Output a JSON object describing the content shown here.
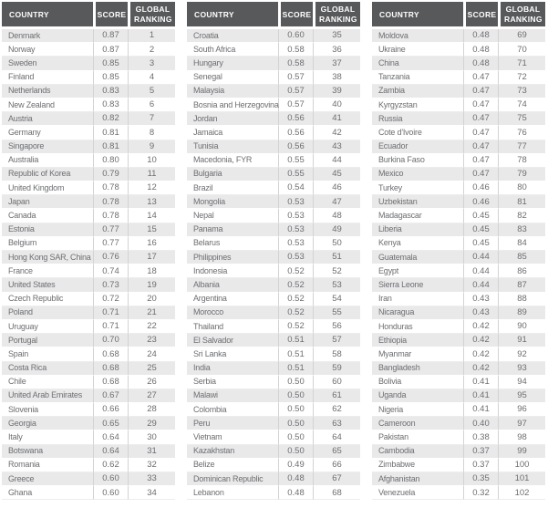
{
  "colors": {
    "header_bg": "#58595B",
    "header_text": "#FFFFFF",
    "row_shaded": "#E9E9EA",
    "row_white": "#FFFFFF",
    "column_divider": "#D2D3D4",
    "body_text": "#6D6E71"
  },
  "chart_data": {
    "type": "table",
    "columns": [
      "COUNTRY",
      "SCORE",
      "GLOBAL RANKING"
    ],
    "panels": [
      {
        "rows": [
          [
            "Denmark",
            "0.87",
            "1"
          ],
          [
            "Norway",
            "0.87",
            "2"
          ],
          [
            "Sweden",
            "0.85",
            "3"
          ],
          [
            "Finland",
            "0.85",
            "4"
          ],
          [
            "Netherlands",
            "0.83",
            "5"
          ],
          [
            "New Zealand",
            "0.83",
            "6"
          ],
          [
            "Austria",
            "0.82",
            "7"
          ],
          [
            "Germany",
            "0.81",
            "8"
          ],
          [
            "Singapore",
            "0.81",
            "9"
          ],
          [
            "Australia",
            "0.80",
            "10"
          ],
          [
            "Republic of Korea",
            "0.79",
            "11"
          ],
          [
            "United Kingdom",
            "0.78",
            "12"
          ],
          [
            "Japan",
            "0.78",
            "13"
          ],
          [
            "Canada",
            "0.78",
            "14"
          ],
          [
            "Estonia",
            "0.77",
            "15"
          ],
          [
            "Belgium",
            "0.77",
            "16"
          ],
          [
            "Hong Kong SAR, China",
            "0.76",
            "17"
          ],
          [
            "France",
            "0.74",
            "18"
          ],
          [
            "United States",
            "0.73",
            "19"
          ],
          [
            "Czech Republic",
            "0.72",
            "20"
          ],
          [
            "Poland",
            "0.71",
            "21"
          ],
          [
            "Uruguay",
            "0.71",
            "22"
          ],
          [
            "Portugal",
            "0.70",
            "23"
          ],
          [
            "Spain",
            "0.68",
            "24"
          ],
          [
            "Costa Rica",
            "0.68",
            "25"
          ],
          [
            "Chile",
            "0.68",
            "26"
          ],
          [
            "United Arab Emirates",
            "0.67",
            "27"
          ],
          [
            "Slovenia",
            "0.66",
            "28"
          ],
          [
            "Georgia",
            "0.65",
            "29"
          ],
          [
            "Italy",
            "0.64",
            "30"
          ],
          [
            "Botswana",
            "0.64",
            "31"
          ],
          [
            "Romania",
            "0.62",
            "32"
          ],
          [
            "Greece",
            "0.60",
            "33"
          ],
          [
            "Ghana",
            "0.60",
            "34"
          ]
        ]
      },
      {
        "rows": [
          [
            "Croatia",
            "0.60",
            "35"
          ],
          [
            "South Africa",
            "0.58",
            "36"
          ],
          [
            "Hungary",
            "0.58",
            "37"
          ],
          [
            "Senegal",
            "0.57",
            "38"
          ],
          [
            "Malaysia",
            "0.57",
            "39"
          ],
          [
            "Bosnia and Herzegovina",
            "0.57",
            "40"
          ],
          [
            "Jordan",
            "0.56",
            "41"
          ],
          [
            "Jamaica",
            "0.56",
            "42"
          ],
          [
            "Tunisia",
            "0.56",
            "43"
          ],
          [
            "Macedonia, FYR",
            "0.55",
            "44"
          ],
          [
            "Bulgaria",
            "0.55",
            "45"
          ],
          [
            "Brazil",
            "0.54",
            "46"
          ],
          [
            "Mongolia",
            "0.53",
            "47"
          ],
          [
            "Nepal",
            "0.53",
            "48"
          ],
          [
            "Panama",
            "0.53",
            "49"
          ],
          [
            "Belarus",
            "0.53",
            "50"
          ],
          [
            "Philippines",
            "0.53",
            "51"
          ],
          [
            "Indonesia",
            "0.52",
            "52"
          ],
          [
            "Albania",
            "0.52",
            "53"
          ],
          [
            "Argentina",
            "0.52",
            "54"
          ],
          [
            "Morocco",
            "0.52",
            "55"
          ],
          [
            "Thailand",
            "0.52",
            "56"
          ],
          [
            "El Salvador",
            "0.51",
            "57"
          ],
          [
            "Sri Lanka",
            "0.51",
            "58"
          ],
          [
            "India",
            "0.51",
            "59"
          ],
          [
            "Serbia",
            "0.50",
            "60"
          ],
          [
            "Malawi",
            "0.50",
            "61"
          ],
          [
            "Colombia",
            "0.50",
            "62"
          ],
          [
            "Peru",
            "0.50",
            "63"
          ],
          [
            "Vietnam",
            "0.50",
            "64"
          ],
          [
            "Kazakhstan",
            "0.50",
            "65"
          ],
          [
            "Belize",
            "0.49",
            "66"
          ],
          [
            "Dominican Republic",
            "0.48",
            "67"
          ],
          [
            "Lebanon",
            "0.48",
            "68"
          ]
        ]
      },
      {
        "rows": [
          [
            "Moldova",
            "0.48",
            "69"
          ],
          [
            "Ukraine",
            "0.48",
            "70"
          ],
          [
            "China",
            "0.48",
            "71"
          ],
          [
            "Tanzania",
            "0.47",
            "72"
          ],
          [
            "Zambia",
            "0.47",
            "73"
          ],
          [
            "Kyrgyzstan",
            "0.47",
            "74"
          ],
          [
            "Russia",
            "0.47",
            "75"
          ],
          [
            "Cote d'Ivoire",
            "0.47",
            "76"
          ],
          [
            "Ecuador",
            "0.47",
            "77"
          ],
          [
            "Burkina Faso",
            "0.47",
            "78"
          ],
          [
            "Mexico",
            "0.47",
            "79"
          ],
          [
            "Turkey",
            "0.46",
            "80"
          ],
          [
            "Uzbekistan",
            "0.46",
            "81"
          ],
          [
            "Madagascar",
            "0.45",
            "82"
          ],
          [
            "Liberia",
            "0.45",
            "83"
          ],
          [
            "Kenya",
            "0.45",
            "84"
          ],
          [
            "Guatemala",
            "0.44",
            "85"
          ],
          [
            "Egypt",
            "0.44",
            "86"
          ],
          [
            "Sierra Leone",
            "0.44",
            "87"
          ],
          [
            "Iran",
            "0.43",
            "88"
          ],
          [
            "Nicaragua",
            "0.43",
            "89"
          ],
          [
            "Honduras",
            "0.42",
            "90"
          ],
          [
            "Ethiopia",
            "0.42",
            "91"
          ],
          [
            "Myanmar",
            "0.42",
            "92"
          ],
          [
            "Bangladesh",
            "0.42",
            "93"
          ],
          [
            "Bolivia",
            "0.41",
            "94"
          ],
          [
            "Uganda",
            "0.41",
            "95"
          ],
          [
            "Nigeria",
            "0.41",
            "96"
          ],
          [
            "Cameroon",
            "0.40",
            "97"
          ],
          [
            "Pakistan",
            "0.38",
            "98"
          ],
          [
            "Cambodia",
            "0.37",
            "99"
          ],
          [
            "Zimbabwe",
            "0.37",
            "100"
          ],
          [
            "Afghanistan",
            "0.35",
            "101"
          ],
          [
            "Venezuela",
            "0.32",
            "102"
          ]
        ]
      }
    ]
  }
}
